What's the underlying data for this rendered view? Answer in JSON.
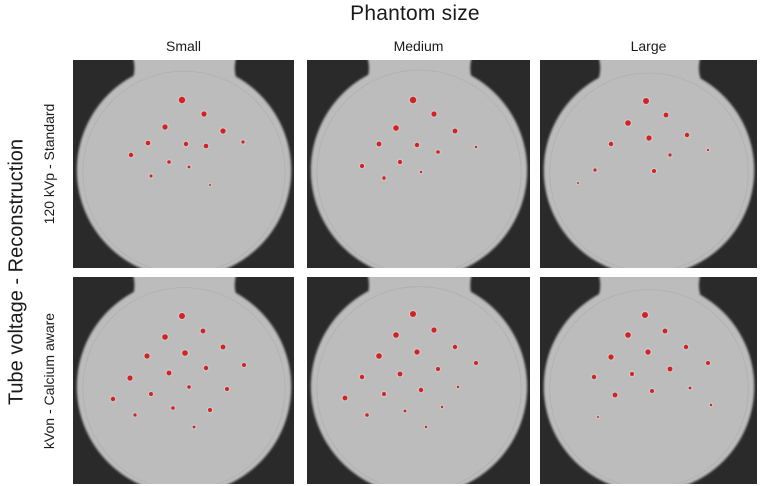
{
  "figure": {
    "title": "Phantom size",
    "column_axis_label": "Phantom size",
    "row_axis_label": "Tube voltage - Reconstruction",
    "columns": [
      {
        "label": "Small"
      },
      {
        "label": "Medium"
      },
      {
        "label": "Large"
      }
    ],
    "rows": [
      {
        "label": "120 kVp - Standard"
      },
      {
        "label": "kVon - Calcium aware"
      }
    ],
    "colors": {
      "background": "#2a2a2a",
      "phantom": "#bcbcbc",
      "calcification_marker": "#d42222"
    },
    "panels": [
      {
        "row": 0,
        "col": 0,
        "name": "Small / 120 kVp - Standard",
        "dots": [
          [
            109,
            40,
            3.2
          ],
          [
            131,
            54,
            2.6
          ],
          [
            92,
            67,
            2.6
          ],
          [
            150,
            71,
            2.6
          ],
          [
            75,
            83,
            2.3
          ],
          [
            113,
            84,
            2.2
          ],
          [
            133,
            86,
            2.3
          ],
          [
            170,
            82,
            1.6
          ],
          [
            58,
            95,
            2.2
          ],
          [
            96,
            102,
            1.8
          ],
          [
            78,
            116,
            1.5
          ],
          [
            116,
            107,
            1.4
          ],
          [
            137,
            125,
            1.0
          ]
        ]
      },
      {
        "row": 0,
        "col": 1,
        "name": "Medium / 120 kVp - Standard",
        "dots": [
          [
            106,
            40,
            3.2
          ],
          [
            127,
            54,
            2.6
          ],
          [
            89,
            68,
            2.8
          ],
          [
            148,
            71,
            2.4
          ],
          [
            72,
            84,
            2.4
          ],
          [
            110,
            85,
            2.2
          ],
          [
            131,
            92,
            1.8
          ],
          [
            169,
            87,
            1.2
          ],
          [
            55,
            106,
            2.1
          ],
          [
            93,
            102,
            2.1
          ],
          [
            77,
            118,
            1.7
          ],
          [
            114,
            112,
            1.2
          ]
        ]
      },
      {
        "row": 0,
        "col": 2,
        "name": "Large / 120 kVp - Standard",
        "dots": [
          [
            106,
            41,
            3.0
          ],
          [
            126,
            55,
            2.4
          ],
          [
            88,
            63,
            2.8
          ],
          [
            147,
            75,
            2.2
          ],
          [
            71,
            84,
            2.2
          ],
          [
            109,
            78,
            2.6
          ],
          [
            130,
            95,
            1.6
          ],
          [
            168,
            90,
            1.1
          ],
          [
            55,
            110,
            1.6
          ],
          [
            114,
            111,
            2.0
          ],
          [
            38,
            123,
            1.0
          ]
        ]
      },
      {
        "row": 1,
        "col": 0,
        "name": "Small / kVon - Calcium aware",
        "dots": [
          [
            109,
            39,
            3.0
          ],
          [
            130,
            54,
            2.4
          ],
          [
            92,
            60,
            2.8
          ],
          [
            150,
            70,
            2.4
          ],
          [
            74,
            79,
            2.6
          ],
          [
            112,
            76,
            2.8
          ],
          [
            171,
            88,
            2.0
          ],
          [
            57,
            101,
            2.6
          ],
          [
            96,
            96,
            2.4
          ],
          [
            133,
            91,
            2.2
          ],
          [
            154,
            112,
            2.0
          ],
          [
            40,
            122,
            2.2
          ],
          [
            78,
            117,
            2.0
          ],
          [
            116,
            110,
            1.8
          ],
          [
            137,
            133,
            2.0
          ],
          [
            62,
            138,
            1.6
          ],
          [
            100,
            131,
            1.8
          ],
          [
            121,
            150,
            1.4
          ]
        ]
      },
      {
        "row": 1,
        "col": 1,
        "name": "Medium / kVon - Calcium aware",
        "dots": [
          [
            106,
            37,
            3.0
          ],
          [
            127,
            53,
            2.6
          ],
          [
            89,
            58,
            2.8
          ],
          [
            148,
            70,
            2.2
          ],
          [
            72,
            79,
            2.8
          ],
          [
            110,
            75,
            2.6
          ],
          [
            169,
            86,
            2.0
          ],
          [
            55,
            100,
            2.2
          ],
          [
            93,
            97,
            2.4
          ],
          [
            131,
            92,
            2.0
          ],
          [
            151,
            110,
            1.2
          ],
          [
            38,
            121,
            2.4
          ],
          [
            77,
            117,
            2.0
          ],
          [
            114,
            113,
            2.2
          ],
          [
            135,
            130,
            1.2
          ],
          [
            60,
            138,
            1.8
          ],
          [
            98,
            134,
            1.4
          ],
          [
            119,
            150,
            1.2
          ]
        ]
      },
      {
        "row": 1,
        "col": 2,
        "name": "Large / kVon - Calcium aware",
        "dots": [
          [
            105,
            38,
            3.0
          ],
          [
            125,
            54,
            2.4
          ],
          [
            88,
            58,
            2.8
          ],
          [
            146,
            70,
            2.2
          ],
          [
            71,
            80,
            2.6
          ],
          [
            108,
            75,
            2.6
          ],
          [
            168,
            86,
            2.0
          ],
          [
            54,
            100,
            2.2
          ],
          [
            92,
            97,
            2.0
          ],
          [
            130,
            92,
            2.4
          ],
          [
            150,
            111,
            1.4
          ],
          [
            75,
            118,
            2.4
          ],
          [
            112,
            114,
            2.0
          ],
          [
            171,
            128,
            1.2
          ],
          [
            58,
            140,
            1.0
          ]
        ]
      }
    ]
  }
}
